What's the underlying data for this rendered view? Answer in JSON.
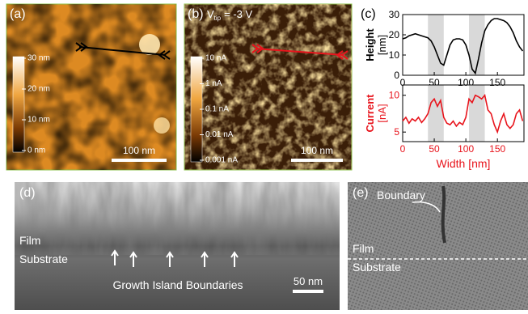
{
  "panels": {
    "a": {
      "label": "(a)",
      "colorbar": [
        "30 nm",
        "20 nm",
        "10 nm",
        "0 nm"
      ],
      "scale_bar": "100 nm"
    },
    "b": {
      "label": "(b)",
      "bias_symbol": "V",
      "bias_subscript": "tip",
      "bias_value": "= -3 V",
      "colorbar": [
        "10 nA",
        "1 nA",
        "0.1 nA",
        "0.01 nA",
        "0.001 nA"
      ],
      "scale_bar": "100 nm"
    },
    "c": {
      "label": "(c)"
    },
    "d": {
      "label": "(d)",
      "film": "Film",
      "substrate": "Substrate",
      "caption": "Growth Island Boundaries",
      "scale_bar": "50 nm"
    },
    "e": {
      "label": "(e)",
      "boundary": "Boundary",
      "film": "Film",
      "substrate": "Substrate"
    }
  },
  "chart_data": [
    {
      "type": "line",
      "ylabel": [
        "Height",
        "[nm]"
      ],
      "color": "#000000",
      "label_color": "#000000",
      "x": [
        0,
        5,
        10,
        15,
        20,
        25,
        30,
        35,
        40,
        45,
        50,
        55,
        60,
        65,
        70,
        75,
        80,
        85,
        90,
        95,
        100,
        105,
        110,
        115,
        120,
        125,
        130,
        135,
        140,
        145,
        150,
        155,
        160,
        165,
        170,
        175,
        180,
        185,
        190
      ],
      "values": [
        18,
        18.5,
        19.5,
        20,
        20.5,
        20,
        19.5,
        19,
        18.5,
        17,
        14,
        10,
        6,
        5,
        10,
        15,
        17.5,
        18,
        18,
        17.5,
        15,
        10,
        3,
        1,
        8,
        16,
        22,
        25,
        27,
        28,
        28,
        27.5,
        27,
        26,
        24,
        21,
        17,
        14,
        12
      ],
      "xlim": [
        0,
        192
      ],
      "xticks": [
        0,
        50,
        100,
        150
      ],
      "ylim": [
        0,
        30
      ],
      "yticks": [
        0,
        10,
        20,
        30
      ],
      "shaded_x": [
        [
          40,
          65
        ],
        [
          105,
          130
        ]
      ]
    },
    {
      "type": "line",
      "ylabel": [
        "Current",
        "[nA]"
      ],
      "xlabel": "Width [nm]",
      "color": "#e8141c",
      "label_color": "#e8141c",
      "x": [
        0,
        5,
        10,
        15,
        20,
        25,
        30,
        35,
        40,
        45,
        50,
        55,
        60,
        65,
        70,
        75,
        80,
        85,
        90,
        95,
        100,
        105,
        110,
        115,
        120,
        125,
        130,
        135,
        140,
        145,
        150,
        155,
        160,
        165,
        170,
        175,
        180,
        185,
        190
      ],
      "values": [
        6.5,
        7,
        6.2,
        6.8,
        6.5,
        7,
        6.3,
        6.8,
        7.5,
        9,
        9.5,
        8.5,
        9.3,
        7,
        6.2,
        6,
        6.5,
        5.8,
        6.3,
        6,
        7,
        9.5,
        9,
        10,
        9.8,
        9.5,
        10,
        8,
        7.5,
        6,
        5,
        6.5,
        7.5,
        6,
        5.5,
        6,
        7.5,
        8,
        6.5
      ],
      "xlim": [
        0,
        192
      ],
      "xticks": [
        0,
        50,
        100,
        150
      ],
      "ylim": [
        3.7,
        11.4
      ],
      "yticks": [
        5,
        10
      ],
      "shaded_x": [
        [
          40,
          65
        ],
        [
          105,
          130
        ]
      ]
    }
  ]
}
